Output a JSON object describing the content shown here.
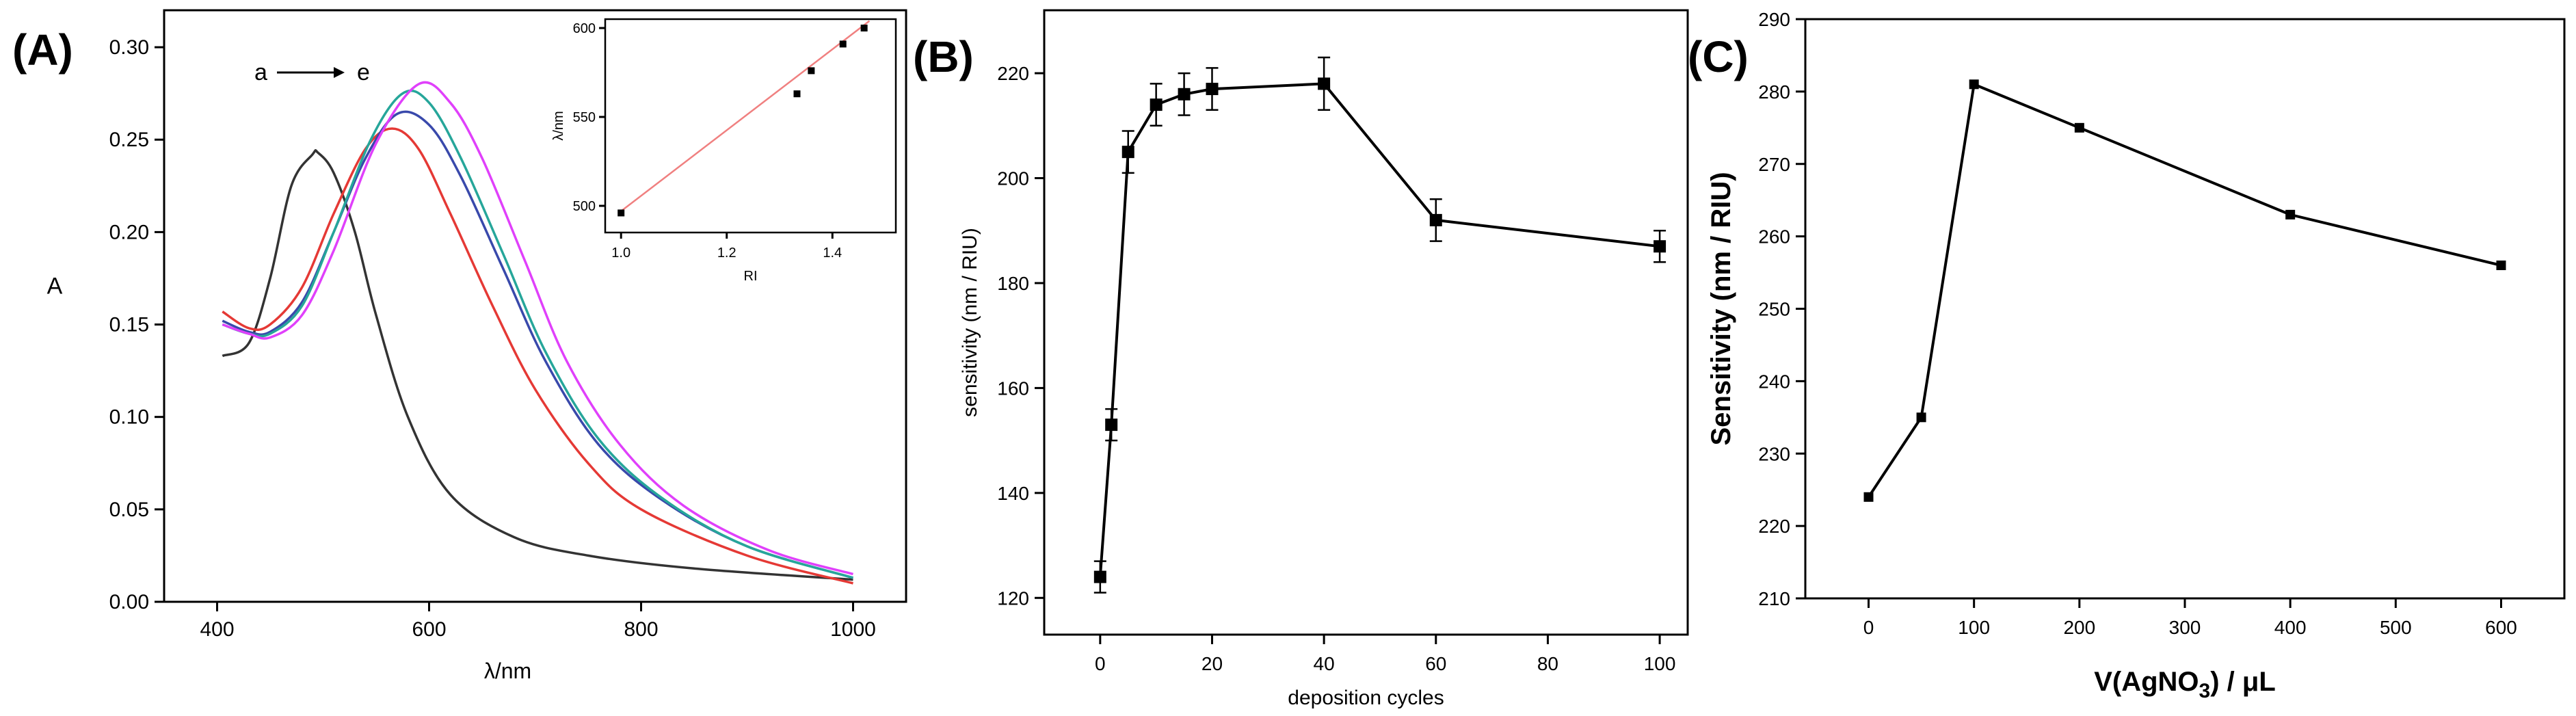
{
  "panels": [
    {
      "id": "A",
      "label": "(A)"
    },
    {
      "id": "B",
      "label": "(B)"
    },
    {
      "id": "C",
      "label": "(C)"
    }
  ],
  "chart_data": [
    {
      "panel": "(A)",
      "type": "line",
      "xlabel": "λ/nm",
      "ylabel": "A",
      "xlim": [
        350,
        1050
      ],
      "ylim": [
        0,
        0.32
      ],
      "xticks": [
        400,
        600,
        800,
        1000
      ],
      "yticks": [
        0.0,
        0.05,
        0.1,
        0.15,
        0.2,
        0.25,
        0.3
      ],
      "annotation": {
        "from": "a",
        "to": "e"
      },
      "series": [
        {
          "color": "#333333",
          "x": [
            405,
            430,
            450,
            470,
            490,
            495,
            510,
            530,
            550,
            580,
            620,
            680,
            750,
            850,
            1000
          ],
          "y": [
            0.133,
            0.14,
            0.175,
            0.225,
            0.242,
            0.243,
            0.232,
            0.2,
            0.155,
            0.1,
            0.058,
            0.035,
            0.025,
            0.018,
            0.012
          ]
        },
        {
          "color": "#e53935",
          "x": [
            405,
            430,
            450,
            480,
            510,
            540,
            565,
            590,
            620,
            660,
            700,
            750,
            800,
            900,
            1000
          ],
          "y": [
            0.157,
            0.148,
            0.15,
            0.17,
            0.21,
            0.245,
            0.256,
            0.245,
            0.21,
            0.16,
            0.115,
            0.075,
            0.05,
            0.025,
            0.01
          ]
        },
        {
          "color": "#3949ab",
          "x": [
            405,
            430,
            450,
            480,
            510,
            540,
            570,
            600,
            630,
            670,
            710,
            760,
            820,
            900,
            1000
          ],
          "y": [
            0.152,
            0.146,
            0.146,
            0.162,
            0.2,
            0.24,
            0.264,
            0.258,
            0.23,
            0.18,
            0.13,
            0.085,
            0.055,
            0.03,
            0.013
          ]
        },
        {
          "color": "#26a69a",
          "x": [
            405,
            430,
            450,
            480,
            510,
            545,
            575,
            600,
            630,
            670,
            710,
            760,
            820,
            900,
            1000
          ],
          "y": [
            0.15,
            0.145,
            0.145,
            0.16,
            0.2,
            0.25,
            0.275,
            0.27,
            0.24,
            0.188,
            0.135,
            0.088,
            0.056,
            0.03,
            0.013
          ]
        },
        {
          "color": "#e040fb",
          "x": [
            405,
            430,
            450,
            480,
            510,
            550,
            590,
            620,
            650,
            690,
            730,
            780,
            840,
            920,
            1000
          ],
          "y": [
            0.15,
            0.145,
            0.143,
            0.155,
            0.19,
            0.248,
            0.28,
            0.27,
            0.24,
            0.185,
            0.13,
            0.085,
            0.052,
            0.028,
            0.015
          ]
        }
      ],
      "inset": {
        "type": "scatter",
        "xlabel": "RI",
        "ylabel": "λ/nm",
        "xlim": [
          0.97,
          1.52
        ],
        "ylim": [
          485,
          605
        ],
        "xticks": [
          "1.0",
          "1.2",
          "1.4"
        ],
        "xtick_values": [
          1.0,
          1.2,
          1.4
        ],
        "yticks": [
          500,
          550,
          600
        ],
        "points": [
          {
            "x": 1.0,
            "y": 496
          },
          {
            "x": 1.333,
            "y": 563
          },
          {
            "x": 1.36,
            "y": 576
          },
          {
            "x": 1.42,
            "y": 591
          },
          {
            "x": 1.46,
            "y": 600
          }
        ],
        "fit_line": {
          "x": [
            1.0,
            1.47
          ],
          "y": [
            497,
            604
          ],
          "color": "#f08080"
        }
      }
    },
    {
      "panel": "(B)",
      "type": "line",
      "xlabel": "deposition cycles",
      "ylabel": "sensitivity (nm / RIU)",
      "xlim": [
        -10,
        105
      ],
      "ylim": [
        113,
        232
      ],
      "xticks": [
        0,
        20,
        40,
        60,
        80,
        100
      ],
      "yticks": [
        120,
        140,
        160,
        180,
        200,
        220
      ],
      "points": [
        {
          "x": 0,
          "y": 124,
          "err": 3
        },
        {
          "x": 2,
          "y": 153,
          "err": 3
        },
        {
          "x": 5,
          "y": 205,
          "err": 4
        },
        {
          "x": 10,
          "y": 214,
          "err": 4
        },
        {
          "x": 15,
          "y": 216,
          "err": 4
        },
        {
          "x": 20,
          "y": 217,
          "err": 4
        },
        {
          "x": 40,
          "y": 218,
          "err": 5
        },
        {
          "x": 60,
          "y": 192,
          "err": 4
        },
        {
          "x": 100,
          "y": 187,
          "err": 3
        }
      ]
    },
    {
      "panel": "(C)",
      "type": "line",
      "xlabel_main": "V(AgNO",
      "xlabel_sub": "3",
      "xlabel_tail": ") / μL",
      "ylabel": "Sensitivity (nm / RIU)",
      "xlim": [
        -60,
        660
      ],
      "ylim": [
        210,
        290
      ],
      "xticks": [
        0,
        100,
        200,
        300,
        400,
        500,
        600
      ],
      "yticks": [
        210,
        220,
        230,
        240,
        250,
        260,
        270,
        280,
        290
      ],
      "points": [
        {
          "x": 0,
          "y": 224
        },
        {
          "x": 50,
          "y": 235
        },
        {
          "x": 100,
          "y": 281
        },
        {
          "x": 200,
          "y": 275
        },
        {
          "x": 400,
          "y": 263
        },
        {
          "x": 600,
          "y": 256
        }
      ]
    }
  ]
}
